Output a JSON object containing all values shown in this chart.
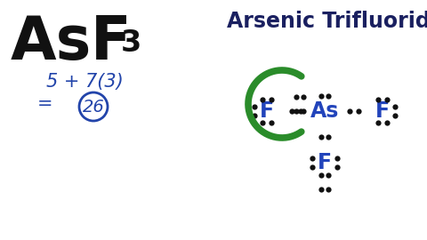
{
  "bg_color": "#ffffff",
  "formula_color": "#111111",
  "calc_color": "#2244aa",
  "circle_color": "#2244aa",
  "lewis_color": "#2244bb",
  "green_color": "#2a8c2a",
  "dot_color": "#111111",
  "subtitle_color": "#1a2060",
  "subtitle": "Arsenic Trifluoride",
  "As_text": "As",
  "F_text": "F",
  "sub3": "3",
  "calc_line1": "5 + 7(3)",
  "equals": "=",
  "val": "26"
}
